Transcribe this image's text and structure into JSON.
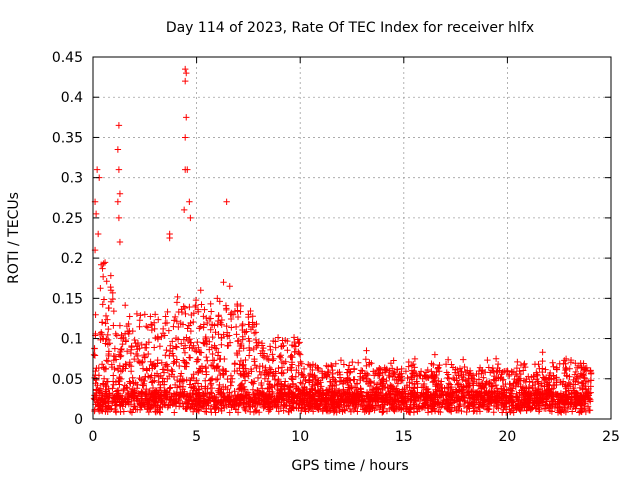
{
  "chart_data": {
    "type": "scatter",
    "title": "Day 114 of 2023, Rate Of TEC Index for receiver hlfx",
    "xlabel": "GPS time / hours",
    "ylabel": "ROTI / TECUs",
    "xlim": [
      0,
      25
    ],
    "ylim": [
      0,
      0.45
    ],
    "xticks": [
      0,
      5,
      10,
      15,
      20,
      25
    ],
    "yticks": [
      0,
      0.05,
      0.1,
      0.15,
      0.2,
      0.25,
      0.3,
      0.35,
      0.4,
      0.45
    ],
    "xtick_labels": [
      "0",
      "5",
      "10",
      "15",
      "20",
      "25"
    ],
    "ytick_labels": [
      "0",
      "0.05",
      "0.1",
      "0.15",
      "0.2",
      "0.25",
      "0.3",
      "0.35",
      "0.4",
      "0.45"
    ],
    "grid": true,
    "marker": "+",
    "color": "#ff0000",
    "series": [
      {
        "name": "ROTI",
        "notable_points": [
          {
            "x": 0.2,
            "y": 0.31
          },
          {
            "x": 0.3,
            "y": 0.3
          },
          {
            "x": 0.1,
            "y": 0.27
          },
          {
            "x": 0.15,
            "y": 0.255
          },
          {
            "x": 0.25,
            "y": 0.23
          },
          {
            "x": 0.1,
            "y": 0.21
          },
          {
            "x": 1.25,
            "y": 0.365
          },
          {
            "x": 1.2,
            "y": 0.335
          },
          {
            "x": 1.25,
            "y": 0.31
          },
          {
            "x": 1.3,
            "y": 0.28
          },
          {
            "x": 1.2,
            "y": 0.27
          },
          {
            "x": 1.25,
            "y": 0.25
          },
          {
            "x": 1.3,
            "y": 0.22
          },
          {
            "x": 3.7,
            "y": 0.23
          },
          {
            "x": 3.7,
            "y": 0.225
          },
          {
            "x": 4.45,
            "y": 0.435
          },
          {
            "x": 4.5,
            "y": 0.43
          },
          {
            "x": 4.45,
            "y": 0.42
          },
          {
            "x": 4.5,
            "y": 0.375
          },
          {
            "x": 4.45,
            "y": 0.35
          },
          {
            "x": 4.45,
            "y": 0.31
          },
          {
            "x": 4.55,
            "y": 0.31
          },
          {
            "x": 4.65,
            "y": 0.27
          },
          {
            "x": 4.4,
            "y": 0.26
          },
          {
            "x": 4.7,
            "y": 0.25
          },
          {
            "x": 6.45,
            "y": 0.27
          },
          {
            "x": 6.3,
            "y": 0.17
          },
          {
            "x": 6.6,
            "y": 0.165
          },
          {
            "x": 5.2,
            "y": 0.16
          },
          {
            "x": 6.0,
            "y": 0.15
          },
          {
            "x": 7.5,
            "y": 0.13
          },
          {
            "x": 7.7,
            "y": 0.12
          },
          {
            "x": 2.5,
            "y": 0.13
          },
          {
            "x": 3.0,
            "y": 0.13
          },
          {
            "x": 13.2,
            "y": 0.085
          },
          {
            "x": 16.5,
            "y": 0.08
          },
          {
            "x": 21.7,
            "y": 0.083
          },
          {
            "x": 10.0,
            "y": 0.08
          },
          {
            "x": 12.8,
            "y": 0.07
          },
          {
            "x": 14.3,
            "y": 0.06
          },
          {
            "x": 18.2,
            "y": 0.06
          },
          {
            "x": 23.8,
            "y": 0.06
          }
        ]
      }
    ]
  }
}
